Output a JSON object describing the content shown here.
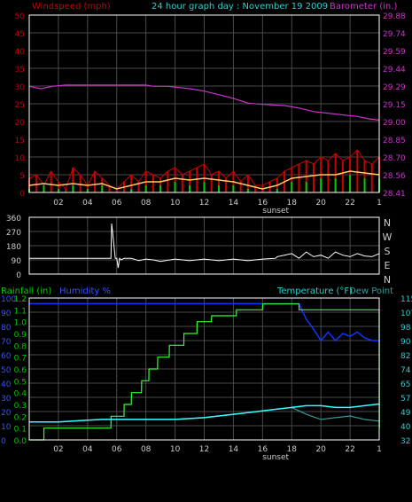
{
  "header": {
    "left_label": "Windspeed (mph)",
    "center_label": "24 hour graph day : November 19 2009",
    "right_label": "Barometer (in.)"
  },
  "sunset_label": "sunset",
  "colors": {
    "background": "#000000",
    "grid": "#4a4a4a",
    "plot_border": "#ffffff",
    "wind_axis": "#cc0000",
    "baro_axis": "#cc33cc",
    "header_center": "#33cccc",
    "wind_gust": "#cc0000",
    "wind_avg": "#00cc00",
    "wind_trend": "#ffcc66",
    "baro_line": "#cc33cc",
    "direction_line": "#ffffff",
    "rain_axis": "#00cc00",
    "humidity_axis": "#3355ff",
    "humidity_line": "#1133ff",
    "temperature_line": "#33ffff",
    "dewpoint_line": "#339999",
    "temp_axis": "#33cccc",
    "rain_line": "#33ff33",
    "label_gray": "#cccccc"
  },
  "chart_data": [
    {
      "type": "line",
      "title": "24 hour graph day : November 19 2009",
      "x_tick_labels": [
        "02",
        "04",
        "06",
        "08",
        "10",
        "12",
        "14",
        "16",
        "18",
        "20",
        "22",
        "1"
      ],
      "x_tick_hours": [
        2,
        4,
        6,
        8,
        10,
        12,
        14,
        16,
        18,
        20,
        22,
        24
      ],
      "xlim": [
        0,
        24
      ],
      "sunset_hour": 16.9,
      "grid": true,
      "left_axis": {
        "label": "Windspeed (mph)",
        "ticks": [
          "0",
          "5",
          "10",
          "15",
          "20",
          "25",
          "30",
          "35",
          "40",
          "45",
          "50"
        ],
        "ylim": [
          0,
          50
        ]
      },
      "right_axis": {
        "label": "Barometer (in.)",
        "ticks": [
          "28.41",
          "28.56",
          "28.70",
          "28.85",
          "29.00",
          "29.15",
          "29.29",
          "29.44",
          "29.59",
          "29.74",
          "29.88"
        ],
        "ylim": [
          28.41,
          29.88
        ]
      },
      "series": [
        {
          "name": "Barometer (in.)",
          "axis": "right",
          "x": [
            0,
            0.8,
            1.6,
            2.5,
            4,
            6,
            8,
            8.5,
            9.5,
            11,
            12,
            13,
            14,
            14.5,
            15,
            16,
            17.5,
            18.5,
            19.5,
            21,
            22.5,
            23.3,
            24
          ],
          "values": [
            29.29,
            29.27,
            29.29,
            29.3,
            29.3,
            29.3,
            29.3,
            29.29,
            29.29,
            29.27,
            29.25,
            29.22,
            29.19,
            29.17,
            29.15,
            29.14,
            29.13,
            29.11,
            29.08,
            29.06,
            29.04,
            29.02,
            29.01
          ]
        },
        {
          "name": "Wind gust",
          "axis": "left",
          "x": [
            0,
            0.5,
            1,
            1.5,
            2,
            2.5,
            3,
            3.5,
            4,
            4.5,
            5,
            5.5,
            6,
            6.5,
            7,
            7.5,
            8,
            8.5,
            9,
            9.5,
            10,
            10.5,
            11,
            11.5,
            12,
            12.5,
            13,
            13.5,
            14,
            14.5,
            15,
            15.5,
            16,
            16.5,
            17,
            17.5,
            18,
            18.5,
            19,
            19.5,
            20,
            20.5,
            21,
            21.5,
            22,
            22.5,
            23,
            23.5,
            24
          ],
          "values": [
            4,
            5,
            2,
            6,
            3,
            1,
            7,
            5,
            2,
            6,
            4,
            2,
            1,
            3,
            5,
            3,
            6,
            5,
            4,
            6,
            7,
            5,
            6,
            7,
            8,
            5,
            6,
            4,
            6,
            3,
            5,
            2,
            2,
            3,
            4,
            6,
            7,
            8,
            9,
            8,
            10,
            9,
            11,
            9,
            10,
            12,
            9,
            8,
            10
          ]
        },
        {
          "name": "Wind average",
          "axis": "left",
          "x": [
            0,
            1,
            2,
            3,
            4,
            5,
            6,
            7,
            8,
            9,
            10,
            11,
            12,
            13,
            14,
            15,
            16,
            17,
            18,
            19,
            20,
            21,
            22,
            23,
            24
          ],
          "values": [
            1,
            2,
            1,
            2,
            1,
            2,
            0,
            1,
            2,
            2,
            3,
            2,
            3,
            2,
            2,
            1,
            0,
            1,
            3,
            3,
            4,
            4,
            5,
            4,
            4
          ]
        },
        {
          "name": "Wind trend",
          "axis": "left",
          "x": [
            0,
            1,
            2,
            3,
            4,
            5,
            6,
            7,
            8,
            9,
            10,
            11,
            12,
            13,
            14,
            15,
            16,
            17,
            18,
            19,
            20,
            21,
            22,
            23,
            24
          ],
          "values": [
            2,
            2.5,
            2,
            2.5,
            2,
            2.5,
            1,
            2,
            3,
            3,
            4,
            3.5,
            4,
            3.5,
            3,
            2,
            1,
            2,
            4,
            4.5,
            5,
            5,
            6,
            5.5,
            5
          ]
        }
      ]
    },
    {
      "type": "line",
      "title": "",
      "x_tick_hours": [
        2,
        4,
        6,
        8,
        10,
        12,
        14,
        16,
        18,
        20,
        22,
        24
      ],
      "xlim": [
        0,
        24
      ],
      "grid": true,
      "left_axis": {
        "ticks": [
          "360",
          "270",
          "180",
          "90",
          "0"
        ],
        "tick_values": [
          360,
          270,
          180,
          90,
          0
        ],
        "ylim": [
          0,
          360
        ]
      },
      "right_axis": {
        "labels": [
          "N",
          "W",
          "S",
          "E",
          "N"
        ]
      },
      "series": [
        {
          "name": "Wind direction",
          "x": [
            0,
            1,
            2,
            3,
            4,
            5,
            5.6,
            5.65,
            5.7,
            5.9,
            6,
            6.1,
            6.2,
            6.3,
            6.5,
            7,
            7.5,
            8,
            8.5,
            9,
            10,
            11,
            12,
            13,
            14,
            15,
            16,
            16.9,
            17,
            17.5,
            18,
            18.5,
            19,
            19.5,
            20,
            20.5,
            21,
            21.5,
            22,
            22.5,
            23,
            23.5,
            24
          ],
          "values": [
            100,
            100,
            100,
            100,
            100,
            100,
            100,
            320,
            280,
            100,
            100,
            40,
            100,
            90,
            100,
            100,
            85,
            95,
            90,
            80,
            95,
            85,
            95,
            85,
            95,
            85,
            95,
            100,
            110,
            120,
            130,
            100,
            140,
            110,
            120,
            100,
            140,
            120,
            110,
            130,
            115,
            110,
            130
          ]
        }
      ]
    },
    {
      "type": "line",
      "title": "",
      "x_tick_labels": [
        "02",
        "04",
        "06",
        "08",
        "10",
        "12",
        "14",
        "16",
        "18",
        "20",
        "22",
        "1"
      ],
      "x_tick_hours": [
        2,
        4,
        6,
        8,
        10,
        12,
        14,
        16,
        18,
        20,
        22,
        24
      ],
      "xlim": [
        0,
        24
      ],
      "sunset_hour": 16.9,
      "grid": true,
      "labels": {
        "rain": "Rainfall (in)",
        "humidity": "Humidity %",
        "temperature": "Temperature (°F)",
        "dewpoint": "Dew Point"
      },
      "rain_axis": {
        "ticks": [
          "0.0",
          "0.1",
          "0.2",
          "0.3",
          "0.4",
          "0.5",
          "0.6",
          "0.7",
          "0.8",
          "0.9",
          "1.0",
          "1.1",
          "1.2"
        ],
        "ylim": [
          0,
          1.2
        ]
      },
      "humidity_axis": {
        "ticks": [
          "0",
          "10",
          "20",
          "30",
          "40",
          "50",
          "60",
          "70",
          "80",
          "90",
          "100"
        ],
        "ylim": [
          0,
          100
        ]
      },
      "temperature_axis": {
        "ticks": [
          "32",
          "40",
          "49",
          "57",
          "65",
          "74",
          "82",
          "90",
          "98",
          "107",
          "115"
        ],
        "ylim": [
          32,
          115
        ]
      },
      "series": [
        {
          "name": "Rainfall (in)",
          "x": [
            0,
            1,
            1.01,
            5.6,
            5.61,
            6.5,
            6.51,
            7,
            7.01,
            7.7,
            7.71,
            8.2,
            8.21,
            8.8,
            8.81,
            9.6,
            9.61,
            10.6,
            10.61,
            11.5,
            11.51,
            12.5,
            12.51,
            14.2,
            14.21,
            16,
            16.01,
            18.5,
            18.51,
            24,
            24.01
          ],
          "values": [
            0,
            0,
            0.1,
            0.1,
            0.2,
            0.2,
            0.3,
            0.3,
            0.4,
            0.4,
            0.5,
            0.5,
            0.6,
            0.6,
            0.7,
            0.7,
            0.8,
            0.8,
            0.9,
            0.9,
            1.0,
            1.0,
            1.05,
            1.05,
            1.1,
            1.1,
            1.15,
            1.15,
            1.1,
            1.1,
            0.1
          ]
        },
        {
          "name": "Humidity %",
          "x": [
            0,
            18.5,
            19,
            19.5,
            20,
            20.5,
            21,
            21.5,
            22,
            22.5,
            23,
            23.5,
            24
          ],
          "values": [
            96,
            96,
            85,
            78,
            70,
            76,
            70,
            75,
            73,
            76,
            72,
            70,
            70
          ]
        },
        {
          "name": "Temperature (°F)",
          "x": [
            0,
            1,
            2,
            3,
            4,
            5,
            6,
            7,
            8,
            9,
            10,
            11,
            12,
            13,
            14,
            15,
            16,
            17,
            18,
            19,
            20,
            21,
            22,
            23,
            24
          ],
          "values": [
            42.5,
            42.5,
            42.5,
            43,
            43.5,
            44,
            44,
            44,
            44,
            44,
            44,
            44.5,
            45,
            46,
            47,
            48,
            49,
            50,
            51,
            52,
            52,
            51,
            51,
            52,
            53
          ]
        },
        {
          "name": "Dew Point",
          "x": [
            0,
            1,
            2,
            3,
            4,
            5,
            6,
            7,
            8,
            9,
            10,
            11,
            12,
            13,
            14,
            15,
            16,
            17,
            18,
            19,
            20,
            21,
            22,
            23,
            24
          ],
          "values": [
            42.5,
            42.5,
            42.5,
            43,
            43.5,
            44,
            44,
            44,
            44,
            44,
            44,
            44.5,
            45,
            46,
            47,
            48,
            49,
            50,
            51,
            47,
            44,
            45,
            46,
            44,
            43
          ]
        }
      ]
    }
  ]
}
